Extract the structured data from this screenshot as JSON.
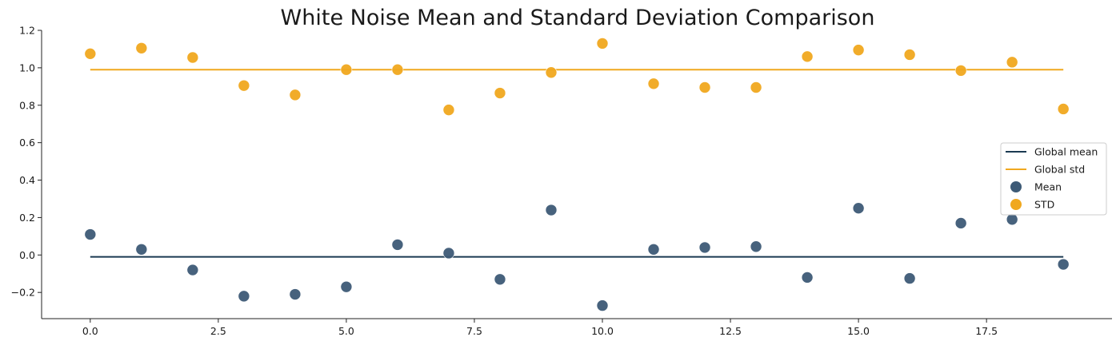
{
  "chart_data": {
    "type": "scatter",
    "title": "White Noise Mean and Standard Deviation Comparison",
    "xlabel": "",
    "ylabel": "",
    "xlim": [
      -0.95,
      19.95
    ],
    "ylim": [
      -0.34,
      1.2
    ],
    "x_ticks": [
      0.0,
      2.5,
      5.0,
      7.5,
      10.0,
      12.5,
      15.0,
      17.5
    ],
    "x_tick_labels": [
      "0.0",
      "2.5",
      "5.0",
      "7.5",
      "10.0",
      "12.5",
      "15.0",
      "17.5"
    ],
    "y_ticks": [
      -0.2,
      0.0,
      0.2,
      0.4,
      0.6,
      0.8,
      1.0,
      1.2
    ],
    "y_tick_labels": [
      "−0.2",
      "0.0",
      "0.2",
      "0.4",
      "0.6",
      "0.8",
      "1.0",
      "1.2"
    ],
    "grid": false,
    "legend_position": "center-right",
    "x": [
      0,
      1,
      2,
      3,
      4,
      5,
      6,
      7,
      8,
      9,
      10,
      11,
      12,
      13,
      14,
      15,
      16,
      17,
      18,
      19
    ],
    "lines": [
      {
        "name": "Global mean",
        "color": "#1b3a52",
        "x": [
          0,
          19
        ],
        "y": [
          -0.01,
          -0.01
        ]
      },
      {
        "name": "Global std",
        "color": "#f0a81f",
        "x": [
          0,
          19
        ],
        "y": [
          0.99,
          0.99
        ]
      }
    ],
    "series": [
      {
        "name": "Mean",
        "color": "#3d5a76",
        "values": [
          0.11,
          0.03,
          -0.08,
          -0.22,
          -0.21,
          -0.17,
          0.055,
          0.01,
          -0.13,
          0.24,
          -0.27,
          0.03,
          0.04,
          0.045,
          -0.12,
          0.25,
          -0.125,
          0.17,
          0.19,
          -0.05
        ]
      },
      {
        "name": "STD",
        "color": "#f0a81f",
        "values": [
          1.075,
          1.105,
          1.055,
          0.905,
          0.855,
          0.99,
          0.99,
          0.775,
          0.865,
          0.975,
          1.13,
          0.915,
          0.895,
          0.895,
          1.06,
          1.095,
          1.07,
          0.985,
          1.03,
          0.78
        ]
      }
    ]
  }
}
